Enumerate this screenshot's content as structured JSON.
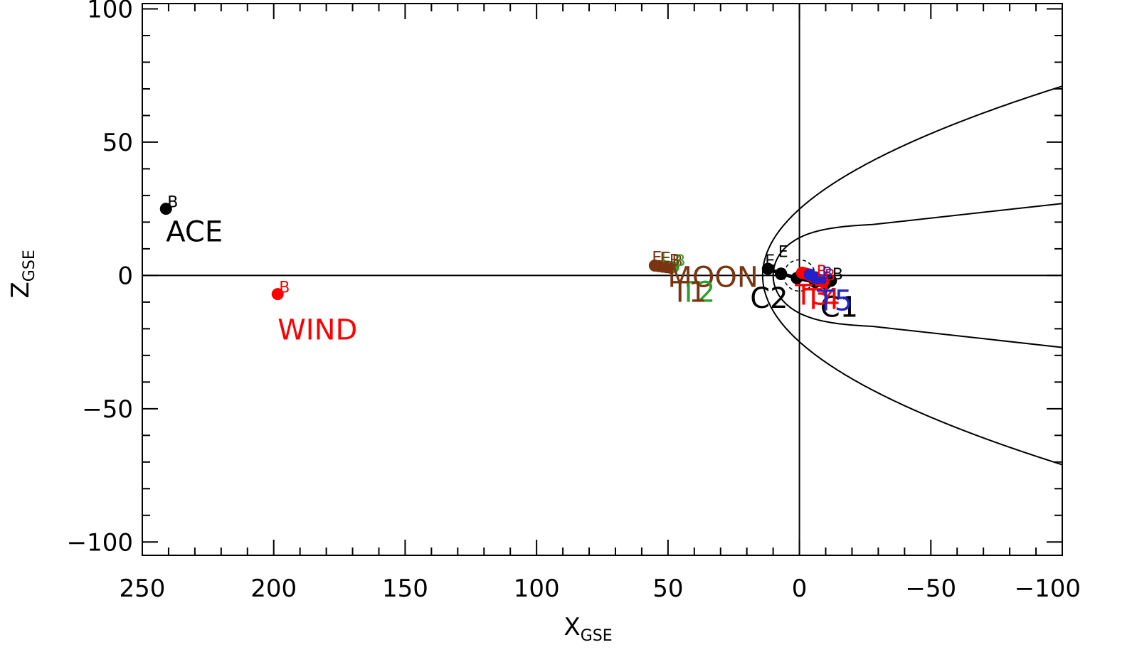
{
  "chart_data": {
    "type": "scatter",
    "title": "",
    "xlabel": {
      "main": "X",
      "sub": "GSE"
    },
    "ylabel": {
      "main": "Z",
      "sub": "GSE"
    },
    "xlim": [
      250,
      -100
    ],
    "ylim": [
      -105,
      102
    ],
    "x_ticks": [
      250,
      200,
      150,
      100,
      50,
      0,
      -50,
      -100
    ],
    "x_tick_labels": [
      "250",
      "200",
      "150",
      "100",
      "50",
      "0",
      "−50",
      "−100"
    ],
    "y_ticks": [
      100,
      50,
      0,
      -50,
      -100
    ],
    "y_tick_labels": [
      "100",
      "50",
      "0",
      "−50",
      "−100"
    ],
    "x_minor_step": 10,
    "y_minor_step": 10,
    "grid": false,
    "reference_lines": {
      "x": 0,
      "y": 0
    },
    "boundaries": [
      {
        "kind": "bow-shock",
        "nose_x": 14,
        "flank_z_at_x0": 25,
        "tail_z_at_x_minus100": 71
      },
      {
        "kind": "magnetopause",
        "nose_x": 10,
        "flank_z_at_x0": 14,
        "tail_z": 27
      }
    ],
    "colors": {
      "black": "#000000",
      "red": "#ff0000",
      "brown": "#7a3410",
      "green": "#2ca02c",
      "blue": "#2222cc"
    },
    "series": [
      {
        "name": "ACE",
        "color": "#000000",
        "x": [
          241
        ],
        "y": [
          25
        ],
        "markers": [
          "B"
        ]
      },
      {
        "name": "WIND",
        "color": "#ff0000",
        "x": [
          198.5
        ],
        "y": [
          -7
        ],
        "markers": [
          "B"
        ]
      },
      {
        "name": "MOON",
        "color": "#7a3410",
        "x": [
          55,
          53.5,
          52,
          50.5,
          49
        ],
        "y": [
          3.7,
          3.5,
          3.3,
          3.1,
          2.9
        ],
        "markers": [
          "E",
          "B"
        ]
      },
      {
        "name": "T2",
        "color": "#2ca02c",
        "x": [
          51.5,
          50,
          48
        ],
        "y": [
          3.5,
          3.3,
          3.1
        ],
        "markers": [
          "E",
          "B"
        ]
      },
      {
        "name": "T1",
        "color": "#7a3410",
        "x": [
          52,
          50
        ],
        "y": [
          3.4,
          3.2
        ],
        "markers": [
          "E",
          "B"
        ]
      },
      {
        "name": "C2",
        "color": "#000000",
        "x": [
          12,
          7,
          1,
          -6,
          -10,
          -12
        ],
        "y": [
          2.5,
          0.7,
          -1,
          -2.5,
          -3,
          -2
        ],
        "markers": [
          "E",
          "B"
        ]
      },
      {
        "name": "C1",
        "color": "#000000",
        "x": [
          7
        ],
        "y": [
          0.5
        ],
        "markers": [
          "E"
        ]
      },
      {
        "name": "T3",
        "color": "#ff0000",
        "x": [
          -1,
          -3,
          -5,
          -7,
          -9
        ],
        "y": [
          1,
          0.5,
          -0.5,
          -1.5,
          -2.5
        ],
        "markers": [
          "B"
        ]
      },
      {
        "name": "T4",
        "color": "#ff0000",
        "x": [
          -2,
          -4,
          -6
        ],
        "y": [
          0.8,
          0,
          -1
        ],
        "markers": [
          "B"
        ]
      },
      {
        "name": "T5",
        "color": "#2222cc",
        "x": [
          -4,
          -6,
          -8
        ],
        "y": [
          0.3,
          -0.7,
          -1.7
        ],
        "markers": [
          "B"
        ]
      }
    ],
    "label_text": [
      {
        "text": "ACE",
        "color": "#000000"
      },
      {
        "text": "WIND",
        "color": "#ff0000"
      },
      {
        "text": "MOON",
        "color": "#7a3410"
      },
      {
        "text": "T2",
        "color": "#2ca02c"
      },
      {
        "text": "T1",
        "color": "#7a3410"
      },
      {
        "text": "C2",
        "color": "#000000"
      },
      {
        "text": "C1",
        "color": "#000000"
      },
      {
        "text": "T3",
        "color": "#ff0000"
      },
      {
        "text": "T4",
        "color": "#ff0000"
      },
      {
        "text": "T5",
        "color": "#2222cc"
      }
    ]
  }
}
